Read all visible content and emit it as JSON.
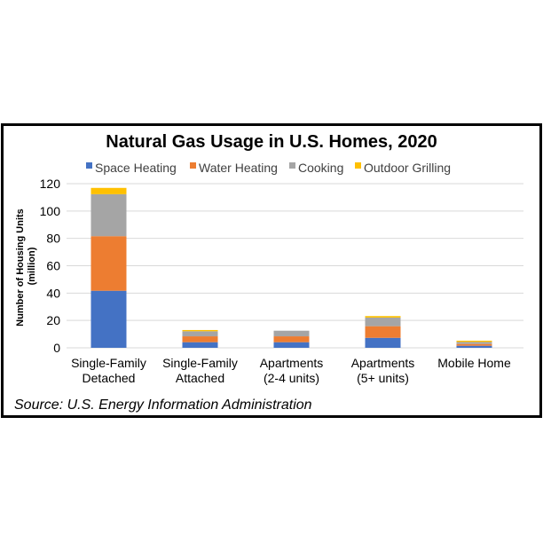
{
  "chart_data": {
    "type": "bar",
    "stacked": true,
    "title": "Natural Gas Usage in U.S. Homes, 2020",
    "ylabel": "Number of Housing Units (million)",
    "xlabel": "",
    "ylim": [
      0,
      120
    ],
    "yticks": [
      0,
      20,
      40,
      60,
      80,
      100,
      120
    ],
    "grid": true,
    "legend_position": "top",
    "categories": [
      [
        "Single-Family",
        "Detached"
      ],
      [
        "Single-Family",
        "Attached"
      ],
      [
        "Apartments",
        "(2-4 units)"
      ],
      [
        "Apartments",
        "(5+ units)"
      ],
      [
        "Mobile Home"
      ]
    ],
    "series": [
      {
        "name": "Space Heating",
        "color": "#4472C4",
        "values": [
          41.7,
          4.1,
          4.1,
          7.3,
          1.5
        ]
      },
      {
        "name": "Water Heating",
        "color": "#ED7D31",
        "values": [
          39.9,
          4.3,
          4.3,
          8.5,
          1.3
        ]
      },
      {
        "name": "Cooking",
        "color": "#A5A5A5",
        "values": [
          30.7,
          3.7,
          4.1,
          6.3,
          1.5
        ]
      },
      {
        "name": "Outdoor Grilling",
        "color": "#FFC000",
        "values": [
          4.6,
          0.9,
          0.0,
          1.1,
          0.9
        ]
      }
    ]
  },
  "source": "Source: U.S. Energy Information Administration"
}
